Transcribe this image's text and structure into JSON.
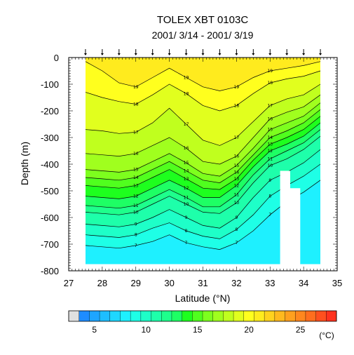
{
  "chart_data": {
    "type": "heatmap",
    "subtype": "filled-contour depth section",
    "title": "TOLEX XBT 0103C",
    "subtitle": "2001/ 3/14 - 2001/ 3/19",
    "xlabel": "Latitude (°N)",
    "ylabel": "Depth (m)",
    "xlim": [
      27,
      35
    ],
    "ylim": [
      -800,
      0
    ],
    "xticks": [
      "27",
      "28",
      "29",
      "30",
      "31",
      "32",
      "33",
      "34",
      "35"
    ],
    "yticks": [
      "0",
      "-100",
      "-200",
      "-300",
      "-400",
      "-500",
      "-600",
      "-700",
      "-800"
    ],
    "colorbar": {
      "label": "(°C)",
      "ticks": [
        "5",
        "10",
        "15",
        "20",
        "25"
      ],
      "levels_min": 3,
      "levels_max": 28,
      "step": 1,
      "colors": [
        "#e0e0e0",
        "#1e8cff",
        "#1ea5ff",
        "#1ebeff",
        "#1ed7ff",
        "#1ef0ff",
        "#1effe6",
        "#1effc8",
        "#1effaa",
        "#1eff8c",
        "#1eff64",
        "#1eff1e",
        "#50ff1e",
        "#7dff1e",
        "#a0ff1e",
        "#c0ff1e",
        "#e1ff1e",
        "#ffff1e",
        "#ffeb1e",
        "#ffd21e",
        "#ffb91e",
        "#ffa01e",
        "#ff871e",
        "#ff6e1e",
        "#ff501e",
        "#ff321e"
      ]
    },
    "latitudes": [
      27.5,
      28.0,
      28.5,
      29.0,
      29.5,
      30.0,
      30.5,
      31.0,
      31.5,
      32.0,
      32.5,
      33.0,
      33.5,
      34.0,
      34.5
    ],
    "isotherm_depths": {
      "19": [
        -15,
        -50,
        -95,
        -110,
        -75,
        -40,
        -75,
        -110,
        -125,
        -110,
        -75,
        -50,
        -40,
        -30,
        -15
      ],
      "18": [
        -130,
        -150,
        -165,
        -175,
        -140,
        -100,
        -135,
        -180,
        -200,
        -180,
        -135,
        -95,
        -80,
        -70,
        -50
      ],
      "17": [
        -270,
        -275,
        -285,
        -280,
        -245,
        -190,
        -250,
        -310,
        -330,
        -300,
        -240,
        -180,
        -155,
        -140,
        -100
      ],
      "16": [
        -360,
        -365,
        -370,
        -360,
        -330,
        -300,
        -340,
        -390,
        -400,
        -370,
        -300,
        -230,
        -205,
        -185,
        -140
      ],
      "15": [
        -420,
        -425,
        -430,
        -420,
        -390,
        -360,
        -395,
        -435,
        -445,
        -405,
        -340,
        -270,
        -245,
        -220,
        -170
      ],
      "14": [
        -450,
        -455,
        -460,
        -450,
        -420,
        -390,
        -425,
        -460,
        -470,
        -430,
        -365,
        -300,
        -275,
        -245,
        -195
      ],
      "13": [
        -480,
        -485,
        -490,
        -480,
        -450,
        -420,
        -455,
        -490,
        -495,
        -455,
        -385,
        -325,
        -300,
        -270,
        -220
      ],
      "12": [
        -520,
        -525,
        -530,
        -520,
        -490,
        -460,
        -490,
        -525,
        -525,
        -480,
        -410,
        -350,
        -325,
        -295,
        -245
      ],
      "11": [
        -555,
        -560,
        -565,
        -555,
        -525,
        -495,
        -525,
        -560,
        -560,
        -515,
        -440,
        -380,
        -350,
        -320,
        -270
      ],
      "10": [
        -580,
        -585,
        -590,
        -580,
        -550,
        -520,
        -550,
        -580,
        -585,
        -545,
        -470,
        -405,
        -380,
        -345,
        -295
      ],
      "9": [
        -625,
        -630,
        -635,
        -625,
        -600,
        -570,
        -600,
        -630,
        -640,
        -600,
        -525,
        -460,
        -430,
        -395,
        -345
      ],
      "8": [
        -665,
        -670,
        -675,
        -665,
        -640,
        -620,
        -650,
        -670,
        -680,
        -645,
        -590,
        -520,
        -480,
        -445,
        -400
      ],
      "7": [
        -705,
        -710,
        -715,
        -705,
        -690,
        -665,
        -695,
        -710,
        -720,
        -695,
        -650,
        -590,
        -540,
        -505,
        -460
      ]
    },
    "surface_temperature_max": 20,
    "annotations": {
      "contour_labels": [
        "19",
        "18",
        "17",
        "16",
        "15",
        "14",
        "13",
        "12",
        "11",
        "10",
        "9",
        "8",
        "7"
      ]
    }
  }
}
